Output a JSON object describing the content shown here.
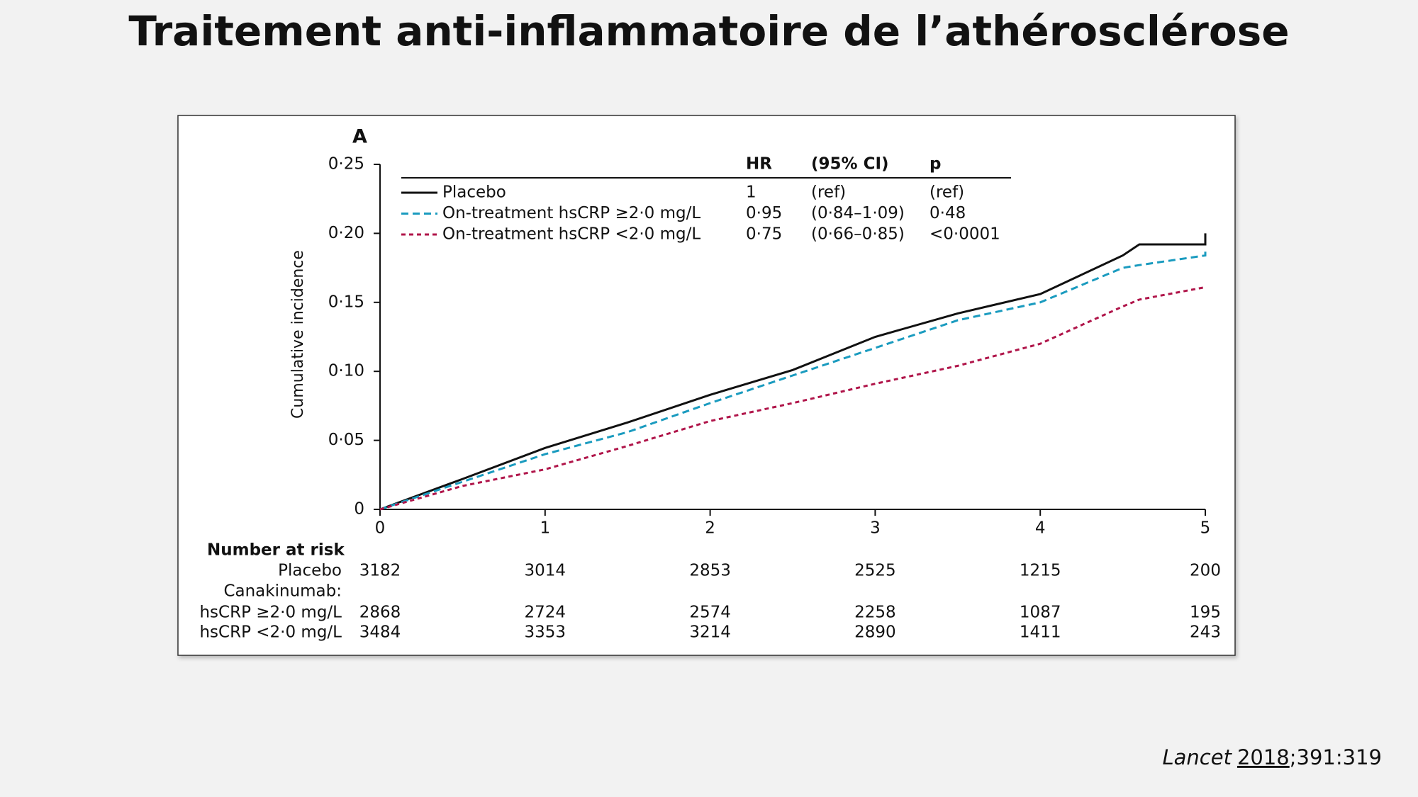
{
  "slide": {
    "title": "Traitement anti-inflammatoire de l’athérosclérose",
    "citation": {
      "journal": "Lancet",
      "year": "2018",
      "reference": ";391:319"
    }
  },
  "chart_data": {
    "type": "line",
    "panel": "A",
    "y_label": "Cumulative incidence",
    "xlim": [
      0,
      5
    ],
    "xticks": [
      0,
      1,
      2,
      3,
      4,
      5
    ],
    "ylim": [
      0,
      0.25
    ],
    "yticks": [
      0,
      {
        "value": 0.05,
        "label": "0·05"
      },
      {
        "value": 0.1,
        "label": "0·10"
      },
      {
        "value": 0.15,
        "label": "0·15"
      },
      {
        "value": 0.2,
        "label": "0·20"
      },
      {
        "value": 0.25,
        "label": "0·25"
      }
    ],
    "x": [
      0,
      0.5,
      1,
      1.5,
      2,
      2.5,
      3,
      3.5,
      4,
      4.5,
      4.6,
      5,
      5
    ],
    "series": [
      {
        "name": "Placebo",
        "color": "#111111",
        "dash": "none",
        "values": [
          0,
          0.022,
          0.0445,
          0.063,
          0.083,
          0.101,
          0.125,
          0.142,
          0.156,
          0.184,
          0.192,
          0.192,
          0.2
        ]
      },
      {
        "name": "On-treatment hsCRP ≥2·0 mg/L",
        "color": "#1a9bbf",
        "dash": "10 6",
        "values": [
          0,
          0.02,
          0.04,
          0.056,
          0.077,
          0.097,
          0.117,
          0.137,
          0.15,
          0.175,
          0.177,
          0.184,
          0.188
        ]
      },
      {
        "name": "On-treatment hsCRP <2·0 mg/L",
        "color": "#b0154a",
        "dash": "6 5",
        "values": [
          0,
          0.017,
          0.029,
          0.046,
          0.064,
          0.077,
          0.091,
          0.104,
          0.12,
          0.147,
          0.152,
          0.161,
          0.161
        ]
      }
    ],
    "legend_table": {
      "columns": [
        "HR",
        "(95% CI)",
        "p"
      ],
      "rows": [
        [
          "1",
          "(ref)",
          "(ref)"
        ],
        [
          "0·95",
          "(0·84–1·09)",
          "0·48"
        ],
        [
          "0·75",
          "(0·66–0·85)",
          "<0·0001"
        ]
      ]
    },
    "risk_table": {
      "title": "Number at risk",
      "group_label": "Canakinumab:",
      "rows": [
        {
          "label": "Placebo",
          "values": [
            3182,
            3014,
            2853,
            2525,
            1215,
            200
          ]
        },
        {
          "label": "hsCRP ≥2·0 mg/L",
          "values": [
            2868,
            2724,
            2574,
            2258,
            1087,
            195
          ]
        },
        {
          "label": "hsCRP <2·0 mg/L",
          "values": [
            3484,
            3353,
            3214,
            2890,
            1411,
            243
          ]
        }
      ]
    }
  }
}
